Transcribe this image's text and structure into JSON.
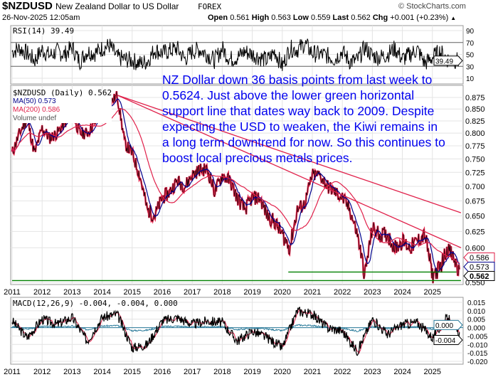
{
  "header": {
    "symbol": "$NZDUSD",
    "name": "New Zealand Dollar to US Dollar",
    "exchange": "FOREX",
    "copyright": "© StockCharts.com",
    "date": "26-Nov-2025 12:05am",
    "open_label": "Open",
    "open": "0.561",
    "high_label": "High",
    "high": "0.563",
    "low_label": "Low",
    "low": "0.559",
    "last_label": "Last",
    "last": "0.562",
    "chg_label": "Chg",
    "chg": "+0.001 (+0.23%)"
  },
  "annotation": "NZ Dollar down 36 basis points from last week to 0.5624. Just above the lower green horizontal support line that dates way back to 2009. Despite expecting the USD to weaken, the Kiwi remains in a long term downtrend for now. So this continues to boost local precious metals prices.",
  "colors": {
    "price": "#000000",
    "price_fill": "#e8224a",
    "ma50": "#00008b",
    "ma200": "#e0204a",
    "support": "#008000",
    "resistance": "#e0204a",
    "annotation": "#0000ee",
    "signal": "#2a7a9a"
  },
  "chart_data": [
    {
      "type": "line",
      "panel": "RSI",
      "legend": "RSI(14) 39.49",
      "last_label": "39.49",
      "yticks": [
        "90",
        "70",
        "50",
        "30",
        "10"
      ],
      "ylim": [
        0,
        100
      ],
      "reference_lines": [
        70,
        30
      ],
      "x": [
        2011,
        2011.25,
        2011.5,
        2011.75,
        2012,
        2012.25,
        2012.5,
        2012.75,
        2013,
        2013.25,
        2013.5,
        2013.75,
        2014,
        2014.25,
        2014.5,
        2014.75,
        2015,
        2015.25,
        2015.5,
        2015.75,
        2016,
        2016.25,
        2016.5,
        2016.75,
        2017,
        2017.25,
        2017.5,
        2017.75,
        2018,
        2018.25,
        2018.5,
        2018.75,
        2019,
        2019.25,
        2019.5,
        2019.75,
        2020,
        2020.25,
        2020.5,
        2020.75,
        2021,
        2021.25,
        2021.5,
        2021.75,
        2022,
        2022.25,
        2022.5,
        2022.75,
        2023,
        2023.25,
        2023.5,
        2023.75,
        2024,
        2024.25,
        2024.5,
        2024.75,
        2025,
        2025.25,
        2025.5,
        2025.75,
        2025.9
      ],
      "values": [
        55,
        60,
        52,
        40,
        58,
        48,
        55,
        50,
        62,
        38,
        55,
        52,
        60,
        65,
        45,
        42,
        40,
        35,
        38,
        58,
        52,
        56,
        60,
        42,
        55,
        58,
        50,
        40,
        60,
        42,
        45,
        55,
        50,
        45,
        40,
        55,
        30,
        60,
        58,
        68,
        52,
        50,
        48,
        42,
        55,
        38,
        40,
        62,
        48,
        45,
        50,
        60,
        42,
        50,
        58,
        35,
        45,
        55,
        42,
        40,
        39.49
      ]
    },
    {
      "type": "line",
      "panel": "price",
      "legend": "$NZDUSD (Daily) 0.562",
      "ma50_legend": "MA(50) 0.573",
      "ma200_legend": "MA(200) 0.586",
      "volume_legend": "Volume undef",
      "ma50_label": "0.573",
      "ma200_label": "0.586",
      "last_label": "0.562",
      "yticks": [
        "0.875",
        "0.850",
        "0.825",
        "0.800",
        "0.775",
        "0.750",
        "0.725",
        "0.700",
        "0.675",
        "0.650",
        "0.625",
        "0.600",
        "0.550"
      ],
      "ylim": [
        0.545,
        0.885
      ],
      "xticks": [
        "2011",
        "2012",
        "2013",
        "2014",
        "2015",
        "2016",
        "2017",
        "2018",
        "2019",
        "2020",
        "2021",
        "2022",
        "2023",
        "2024",
        "2025"
      ],
      "x": [
        2011,
        2011.25,
        2011.5,
        2011.75,
        2012,
        2012.25,
        2012.5,
        2012.75,
        2013,
        2013.25,
        2013.5,
        2013.75,
        2014,
        2014.25,
        2014.5,
        2014.75,
        2015,
        2015.25,
        2015.5,
        2015.75,
        2016,
        2016.25,
        2016.5,
        2016.75,
        2017,
        2017.25,
        2017.5,
        2017.75,
        2018,
        2018.25,
        2018.5,
        2018.75,
        2019,
        2019.25,
        2019.5,
        2019.75,
        2020,
        2020.25,
        2020.5,
        2020.75,
        2021,
        2021.25,
        2021.5,
        2021.75,
        2022,
        2022.25,
        2022.5,
        2022.75,
        2023,
        2023.25,
        2023.5,
        2023.75,
        2024,
        2024.25,
        2024.5,
        2024.75,
        2025,
        2025.25,
        2025.5,
        2025.75,
        2025.9
      ],
      "values": [
        0.76,
        0.8,
        0.83,
        0.76,
        0.81,
        0.79,
        0.8,
        0.82,
        0.84,
        0.8,
        0.8,
        0.82,
        0.85,
        0.86,
        0.88,
        0.78,
        0.76,
        0.72,
        0.66,
        0.65,
        0.68,
        0.69,
        0.71,
        0.7,
        0.72,
        0.73,
        0.73,
        0.69,
        0.72,
        0.71,
        0.68,
        0.66,
        0.68,
        0.68,
        0.65,
        0.64,
        0.62,
        0.6,
        0.66,
        0.67,
        0.72,
        0.72,
        0.7,
        0.69,
        0.68,
        0.66,
        0.62,
        0.56,
        0.63,
        0.62,
        0.62,
        0.6,
        0.61,
        0.6,
        0.61,
        0.62,
        0.56,
        0.57,
        0.6,
        0.58,
        0.562
      ],
      "trendlines": [
        {
          "color": "resistance",
          "from": [
            2014.5,
            0.88
          ],
          "to": [
            2025.95,
            0.655
          ]
        },
        {
          "color": "resistance",
          "from": [
            2014.5,
            0.88
          ],
          "to": [
            2025.95,
            0.6
          ]
        },
        {
          "color": "support",
          "from": [
            2011,
            0.5525
          ],
          "to": [
            2025.95,
            0.5525
          ]
        },
        {
          "color": "support",
          "from": [
            2020.2,
            0.5645
          ],
          "to": [
            2025.8,
            0.5645
          ]
        }
      ]
    },
    {
      "type": "line",
      "panel": "MACD",
      "legend": "MACD(12,26,9) -0.004, -0.004, 0.000",
      "macd_label": "-0.004",
      "hist_label": "0.000",
      "yticks": [
        "0.015",
        "0.010",
        "0.005",
        "0.000",
        "-0.005",
        "-0.010",
        "-0.015",
        "-0.020"
      ],
      "ylim": [
        -0.022,
        0.017
      ],
      "xticks": [
        "2011",
        "2012",
        "2013",
        "2014",
        "2015",
        "2016",
        "2017",
        "2018",
        "2019",
        "2020",
        "2021",
        "2022",
        "2023",
        "2024",
        "2025"
      ],
      "x": [
        2011,
        2011.5,
        2012,
        2012.5,
        2013,
        2013.5,
        2014,
        2014.5,
        2015,
        2015.5,
        2016,
        2016.5,
        2017,
        2017.5,
        2018,
        2018.5,
        2019,
        2019.5,
        2020,
        2020.5,
        2021,
        2021.5,
        2022,
        2022.5,
        2023,
        2023.5,
        2024,
        2024.5,
        2025,
        2025.5,
        2025.9
      ],
      "values": [
        0.004,
        -0.006,
        0.005,
        0.002,
        0.006,
        -0.008,
        0.006,
        0.008,
        -0.012,
        -0.01,
        0.004,
        0.006,
        0.002,
        0.004,
        0.003,
        -0.008,
        -0.002,
        -0.006,
        -0.012,
        0.01,
        0.008,
        0.0,
        -0.002,
        -0.014,
        0.005,
        -0.004,
        0.002,
        0.003,
        -0.006,
        0.006,
        -0.004
      ]
    }
  ]
}
